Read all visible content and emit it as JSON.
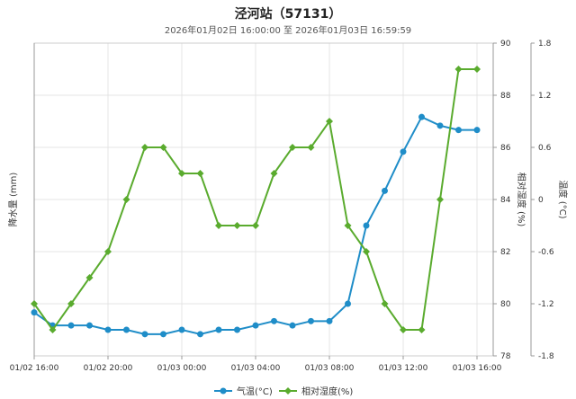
{
  "chart_data": {
    "type": "line",
    "title": "泾河站（57131）",
    "subtitle": "2026年01月02日 16:00:00 至 2026年01月03日 16:59:59",
    "x": [
      "01/02 16:00",
      "01/02 17:00",
      "01/02 18:00",
      "01/02 19:00",
      "01/02 20:00",
      "01/02 21:00",
      "01/02 22:00",
      "01/02 23:00",
      "01/03 00:00",
      "01/03 01:00",
      "01/03 02:00",
      "01/03 03:00",
      "01/03 04:00",
      "01/03 05:00",
      "01/03 06:00",
      "01/03 07:00",
      "01/03 08:00",
      "01/03 09:00",
      "01/03 10:00",
      "01/03 11:00",
      "01/03 12:00",
      "01/03 13:00",
      "01/03 14:00",
      "01/03 15:00",
      "01/03 16:00"
    ],
    "x_ticks": [
      "01/02 16:00",
      "01/02 20:00",
      "01/03 00:00",
      "01/03 04:00",
      "01/03 08:00",
      "01/03 12:00",
      "01/03 16:00"
    ],
    "series": [
      {
        "name": "气温(°C)",
        "color": "#1f8dc8",
        "axis": "temperature",
        "marker": "circle",
        "values": [
          -1.3,
          -1.45,
          -1.45,
          -1.45,
          -1.5,
          -1.5,
          -1.55,
          -1.55,
          -1.5,
          -1.55,
          -1.5,
          -1.5,
          -1.45,
          -1.4,
          -1.45,
          -1.4,
          -1.4,
          -1.2,
          -0.3,
          0.1,
          0.55,
          0.95,
          0.85,
          0.8,
          0.8
        ]
      },
      {
        "name": "相对湿度(%)",
        "color": "#5aab2e",
        "axis": "humidity",
        "marker": "diamond",
        "values": [
          80,
          79,
          80,
          81,
          82,
          84,
          86,
          86,
          85,
          85,
          83,
          83,
          83,
          85,
          86,
          86,
          87,
          83,
          82,
          80,
          79,
          79,
          84,
          89,
          89
        ]
      }
    ],
    "axes": {
      "left": {
        "label": "降水量 (mm)"
      },
      "humidity": {
        "label": "相对湿度 (%)",
        "ticks": [
          78,
          80,
          82,
          84,
          86,
          88,
          90
        ],
        "range": [
          78,
          90
        ]
      },
      "temperature": {
        "label": "温度 (°C)",
        "ticks": [
          "-1.8",
          "-1.2",
          "-0.6",
          "0",
          "0.6",
          "1.2",
          "1.8"
        ],
        "range": [
          -1.8,
          1.8
        ]
      }
    },
    "grid": true,
    "legend": "bottom-center"
  }
}
